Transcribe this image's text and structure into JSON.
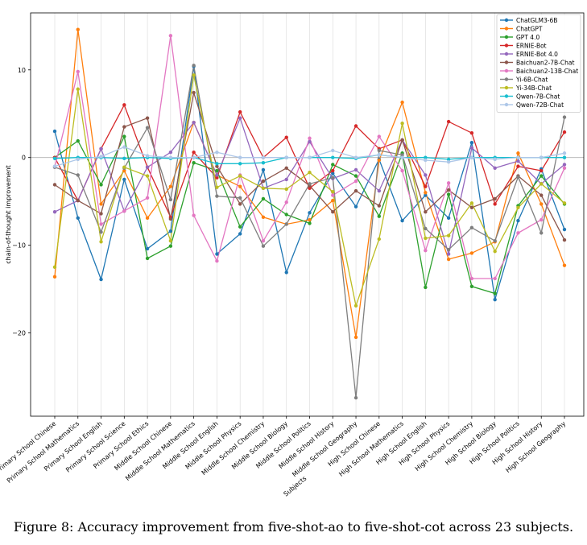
{
  "chart_data": {
    "type": "line",
    "xlabel": "Subjects",
    "ylabel": "chain-of-thought improvement",
    "ylim": [
      -29.5,
      16.5
    ],
    "yticks": [
      -20,
      -10,
      0,
      10
    ],
    "grid": "vertical",
    "legend_position": "top-right",
    "categories": [
      "Primary School Chinese",
      "Primary School Mathematics",
      "Primary School English",
      "Primary School Science",
      "Primary School Ethics",
      "Middle School Chinese",
      "Middle School Mathematics",
      "Middle School English",
      "Middle School Physics",
      "Middle School Chemistry",
      "Middle School Biology",
      "Middle School Politics",
      "Middle School History",
      "Middle School Geography",
      "High School Chinese",
      "High School Mathematics",
      "High School English",
      "High School Physics",
      "High School Chemistry",
      "High School Biology",
      "High School Politics",
      "High School History",
      "High School Geography"
    ],
    "series": [
      {
        "name": "ChatGLM3-6B",
        "color": "#1f77b4",
        "values": [
          3.0,
          -6.9,
          -13.9,
          -2.5,
          -10.4,
          -8.4,
          10.4,
          -11.0,
          -8.7,
          -1.4,
          -13.1,
          -6.3,
          -1.8,
          -5.6,
          -0.2,
          -7.2,
          -4.3,
          -6.9,
          1.7,
          -16.2,
          -7.2,
          -1.3,
          -8.2
        ]
      },
      {
        "name": "ChatGPT",
        "color": "#ff7f0e",
        "values": [
          -13.6,
          14.6,
          -5.3,
          -1.5,
          -6.9,
          -3.3,
          4.0,
          -2.0,
          -3.3,
          -6.8,
          -7.6,
          -7.1,
          -4.9,
          -20.5,
          -0.3,
          6.3,
          -4.0,
          -11.6,
          -10.9,
          -9.6,
          0.5,
          -5.3,
          -12.3
        ]
      },
      {
        "name": "GPT 4.0",
        "color": "#2ca02c",
        "values": [
          0.0,
          1.9,
          -3.1,
          2.4,
          -11.5,
          -10.1,
          -0.6,
          -1.5,
          -7.9,
          -4.7,
          -6.5,
          -7.5,
          -0.8,
          -2.1,
          -6.7,
          0.5,
          -14.8,
          -4.2,
          -14.7,
          -15.5,
          -5.5,
          -2.1,
          -5.3
        ]
      },
      {
        "name": "ERNIE-Bot",
        "color": "#d62728",
        "values": [
          0.0,
          -4.9,
          1.0,
          6.0,
          -1.1,
          -6.8,
          0.6,
          -2.3,
          5.2,
          0.0,
          2.3,
          -3.5,
          -1.5,
          3.6,
          1.0,
          2.0,
          -3.3,
          4.1,
          2.8,
          -5.3,
          -1.0,
          -1.5,
          2.9
        ]
      },
      {
        "name": "ERNIE-Bot 4.0",
        "color": "#9467bd",
        "values": [
          -6.2,
          -4.9,
          1.0,
          -6.1,
          -1.1,
          0.6,
          4.0,
          -2.0,
          4.5,
          -3.5,
          -2.5,
          1.8,
          -2.4,
          -1.4,
          -3.8,
          2.0,
          -2.0,
          -11.0,
          1.1,
          -1.2,
          -0.4,
          -3.0,
          -0.8
        ]
      },
      {
        "name": "Baichuan2-7B-Chat",
        "color": "#8c564b",
        "values": [
          -3.1,
          -4.9,
          -6.4,
          3.5,
          4.5,
          -7.0,
          7.4,
          -1.0,
          -5.3,
          -2.7,
          -1.2,
          -3.2,
          -6.2,
          -3.8,
          -5.5,
          2.0,
          -6.2,
          -3.7,
          -5.7,
          -4.7,
          -2.1,
          -4.3,
          -9.4
        ]
      },
      {
        "name": "Baichuan2-13B-Chat",
        "color": "#e377c2",
        "values": [
          -1.1,
          9.8,
          -7.6,
          -6.1,
          -4.6,
          13.9,
          -6.6,
          -11.8,
          -2.0,
          -9.5,
          -5.1,
          2.2,
          -4.3,
          -2.7,
          2.4,
          -1.5,
          -10.6,
          -2.9,
          -13.8,
          -13.8,
          -8.6,
          -7.1,
          -1.2
        ]
      },
      {
        "name": "Yi-6B-Chat",
        "color": "#7f7f7f",
        "values": [
          -1.1,
          -2.0,
          -8.5,
          -1.2,
          3.4,
          -4.8,
          10.5,
          -4.4,
          -4.6,
          -10.1,
          -7.6,
          -3.0,
          -2.3,
          -27.4,
          0.8,
          0.3,
          -8.1,
          -10.5,
          -8.0,
          -9.5,
          -2.2,
          -8.6,
          4.6
        ]
      },
      {
        "name": "Yi-34B-Chat",
        "color": "#bcbd22",
        "values": [
          -12.5,
          7.8,
          -9.6,
          -1.1,
          -2.1,
          -9.5,
          9.4,
          -3.4,
          -2.1,
          -3.5,
          -3.6,
          -1.7,
          -3.9,
          -16.9,
          -9.3,
          3.9,
          -9.2,
          -8.9,
          -5.2,
          -10.7,
          -5.7,
          -3.0,
          -5.2
        ]
      },
      {
        "name": "Qwen-7B-Chat",
        "color": "#17becf",
        "values": [
          -0.1,
          0.0,
          0.0,
          -0.1,
          0.0,
          -0.1,
          0.0,
          -0.7,
          -0.7,
          -0.6,
          0.0,
          0.0,
          0.0,
          -0.1,
          0.3,
          0.0,
          0.0,
          -0.2,
          0.0,
          0.0,
          0.0,
          0.0,
          0.0
        ]
      },
      {
        "name": "Qwen-72B-Chat",
        "color": "#aec7e8",
        "values": [
          -1.0,
          -0.2,
          0.1,
          1.2,
          0.2,
          0.0,
          0.0,
          0.6,
          0.0,
          0.0,
          0.0,
          0.0,
          0.8,
          0.0,
          0.3,
          0.0,
          -0.3,
          -0.5,
          0.0,
          -0.2,
          0.0,
          0.0,
          0.5
        ]
      }
    ]
  },
  "caption": "Figure 8: Accuracy improvement from five-shot-ao to five-shot-cot across 23 subjects."
}
